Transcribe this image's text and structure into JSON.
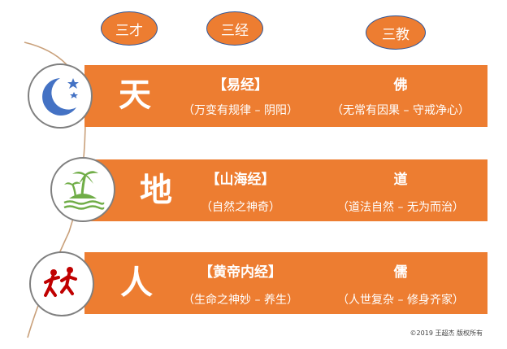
{
  "header": {
    "sancai": "三才",
    "sanjing": "三经",
    "sanjiao": "三教"
  },
  "rows": [
    {
      "realm": "天",
      "icon": "moon-stars-icon",
      "classic": "【易经】",
      "classic_note": "（万变有规律 – 阴阳）",
      "religion": "佛",
      "religion_note": "（无常有因果 – 守戒净心）"
    },
    {
      "realm": "地",
      "icon": "palm-island-icon",
      "classic": "【山海经】",
      "classic_note": "（自然之神奇）",
      "religion": "道",
      "religion_note": "（道法自然 – 无为而治）"
    },
    {
      "realm": "人",
      "icon": "people-running-icon",
      "classic": "【黄帝内经】",
      "classic_note": "（生命之神妙 – 养生）",
      "religion": "儒",
      "religion_note": "（人世复杂 – 修身齐家）"
    }
  ],
  "footer": {
    "copyright": "©2019 王超杰 版权所有"
  },
  "colors": {
    "band": "#ED7D31",
    "oval_border": "#2F5597",
    "moon": "#4472C4",
    "island": "#70AD47",
    "people": "#C00000"
  }
}
